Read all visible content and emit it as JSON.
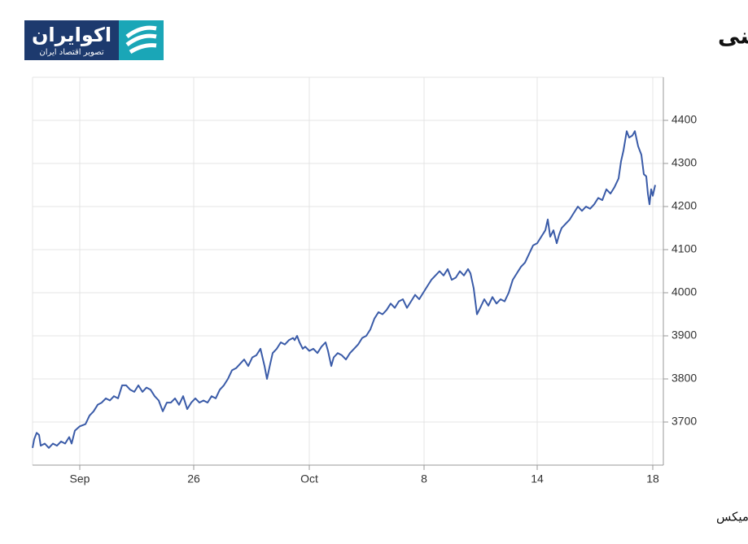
{
  "chart_data": {
    "type": "line",
    "title": "افت طلای جهانی پس از رکوردشکنی",
    "logo": {
      "name": "اکوایران",
      "tagline": "تصویر اقتصاد ایران"
    },
    "source": "منبع: تریدینگ اکونومیکس",
    "xlim": [
      0,
      775
    ],
    "xticks": [
      {
        "value": 58,
        "label": "Sep"
      },
      {
        "value": 198,
        "label": "26"
      },
      {
        "value": 340,
        "label": "Oct"
      },
      {
        "value": 481,
        "label": "8"
      },
      {
        "value": 620,
        "label": "14"
      },
      {
        "value": 762,
        "label": "18"
      }
    ],
    "ylim": [
      3600,
      4500
    ],
    "yticks": [
      3700,
      3800,
      3900,
      4000,
      4100,
      4200,
      4300,
      4400
    ],
    "grid": true,
    "series": [
      {
        "color": "#3a5ba8",
        "x": [
          0,
          2,
          5,
          8,
          10,
          15,
          20,
          25,
          30,
          35,
          40,
          45,
          48,
          52,
          58,
          65,
          70,
          75,
          80,
          85,
          90,
          95,
          100,
          105,
          110,
          115,
          120,
          125,
          130,
          135,
          140,
          145,
          150,
          155,
          160,
          165,
          170,
          175,
          180,
          185,
          190,
          195,
          200,
          205,
          210,
          215,
          220,
          225,
          230,
          235,
          240,
          245,
          250,
          255,
          260,
          265,
          270,
          275,
          280,
          285,
          288,
          292,
          295,
          300,
          305,
          310,
          315,
          320,
          322,
          325,
          328,
          332,
          335,
          340,
          345,
          350,
          355,
          360,
          363,
          367,
          370,
          375,
          380,
          385,
          390,
          395,
          400,
          405,
          410,
          415,
          420,
          425,
          430,
          435,
          440,
          445,
          450,
          455,
          460,
          465,
          470,
          475,
          480,
          485,
          490,
          495,
          500,
          505,
          510,
          515,
          520,
          525,
          530,
          535,
          538,
          542,
          546,
          550,
          555,
          560,
          565,
          570,
          575,
          580,
          585,
          590,
          595,
          600,
          605,
          610,
          615,
          620,
          625,
          630,
          633,
          636,
          640,
          644,
          647,
          650,
          655,
          660,
          665,
          670,
          675,
          680,
          685,
          690,
          695,
          700,
          705,
          710,
          715,
          720,
          723,
          726,
          730,
          733,
          737,
          740,
          744,
          748,
          751,
          754,
          756,
          758,
          760,
          762,
          765
        ],
        "values": [
          3640,
          3660,
          3675,
          3670,
          3645,
          3650,
          3640,
          3650,
          3645,
          3655,
          3650,
          3665,
          3650,
          3680,
          3690,
          3695,
          3715,
          3725,
          3740,
          3745,
          3755,
          3750,
          3760,
          3755,
          3785,
          3785,
          3775,
          3770,
          3785,
          3770,
          3780,
          3775,
          3760,
          3750,
          3725,
          3745,
          3745,
          3755,
          3740,
          3760,
          3730,
          3745,
          3755,
          3745,
          3750,
          3745,
          3760,
          3755,
          3775,
          3785,
          3800,
          3820,
          3825,
          3835,
          3845,
          3830,
          3850,
          3855,
          3870,
          3830,
          3800,
          3835,
          3860,
          3870,
          3885,
          3880,
          3890,
          3895,
          3890,
          3900,
          3885,
          3870,
          3875,
          3865,
          3870,
          3860,
          3875,
          3885,
          3865,
          3830,
          3850,
          3860,
          3855,
          3845,
          3860,
          3870,
          3880,
          3895,
          3900,
          3915,
          3940,
          3955,
          3950,
          3960,
          3975,
          3965,
          3980,
          3985,
          3965,
          3980,
          3995,
          3985,
          4000,
          4015,
          4030,
          4040,
          4050,
          4040,
          4055,
          4030,
          4035,
          4050,
          4040,
          4055,
          4045,
          4010,
          3950,
          3965,
          3985,
          3970,
          3990,
          3975,
          3985,
          3980,
          4000,
          4030,
          4045,
          4060,
          4070,
          4090,
          4110,
          4115,
          4130,
          4145,
          4170,
          4130,
          4145,
          4115,
          4135,
          4150,
          4160,
          4170,
          4185,
          4200,
          4190,
          4200,
          4195,
          4205,
          4220,
          4215,
          4240,
          4230,
          4245,
          4265,
          4305,
          4330,
          4375,
          4360,
          4365,
          4375,
          4340,
          4320,
          4275,
          4270,
          4230,
          4205,
          4240,
          4225,
          4250
        ]
      }
    ]
  }
}
